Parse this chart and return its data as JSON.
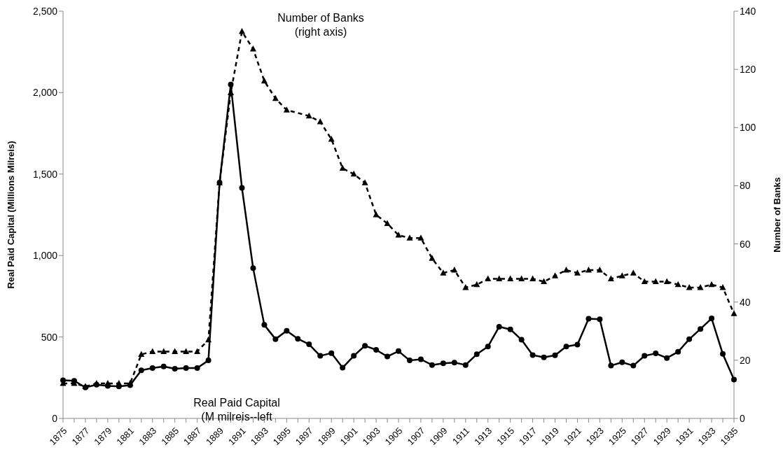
{
  "chart_data": {
    "type": "line",
    "categories": [
      "1875",
      null,
      "1877",
      null,
      "1879",
      null,
      "1881",
      null,
      "1883",
      null,
      "1885",
      null,
      "1887",
      null,
      "1889",
      null,
      "1891",
      null,
      "1893",
      null,
      "1895",
      null,
      "1897",
      null,
      "1899",
      null,
      "1901",
      null,
      "1903",
      null,
      "1905",
      null,
      "1907",
      null,
      "1909",
      null,
      "1911",
      null,
      "1913",
      null,
      "1915",
      null,
      "1917",
      null,
      "1919",
      null,
      "1921",
      null,
      "1923",
      null,
      "1925",
      null,
      "1927",
      null,
      "1929",
      null,
      "1931",
      null,
      "1933",
      null,
      "1935"
    ],
    "series": [
      {
        "color": "#000000",
        "marker": "circle",
        "line_style": "solid",
        "values": [
          234,
          231,
          190,
          207,
          200,
          197,
          204,
          295,
          309,
          319,
          305,
          309,
          309,
          356,
          1448,
          2050,
          1415,
          923,
          574,
          487,
          538,
          489,
          455,
          384,
          401,
          311,
          384,
          446,
          421,
          380,
          413,
          356,
          363,
          328,
          338,
          343,
          328,
          394,
          441,
          563,
          547,
          483,
          389,
          375,
          388,
          441,
          453,
          612,
          609,
          324,
          345,
          324,
          384,
          399,
          371,
          409,
          486,
          549,
          614,
          396,
          238
        ]
      },
      {
        "color": "#000000",
        "marker": "triangle",
        "line_style": "dashed",
        "axis": "y2",
        "values": [
          12,
          12,
          11,
          12,
          12,
          12,
          12,
          22,
          23,
          23,
          23,
          23,
          23,
          27,
          81,
          112,
          133,
          127,
          116,
          110,
          106,
          null,
          104,
          102,
          96,
          86,
          84,
          81,
          70,
          67,
          63,
          62,
          62,
          55,
          50,
          51,
          45,
          46,
          48,
          48,
          48,
          48,
          48,
          47,
          49,
          51,
          50,
          51,
          51,
          48,
          49,
          50,
          47,
          47,
          47,
          46,
          45,
          45,
          46,
          45,
          36
        ]
      }
    ],
    "ylabel": "Real Paid Capital (Millions Milreis)",
    "y2label": "Number of Banks",
    "ylim": [
      0,
      2500
    ],
    "yticks": [
      0,
      500,
      {
        "value": 1000,
        "label": "1,000"
      },
      {
        "value": 1500,
        "label": "1,500"
      },
      {
        "value": 2000,
        "label": "2,000"
      },
      {
        "value": 2500,
        "label": "2,500"
      }
    ],
    "y2lim": [
      0,
      140
    ],
    "y2ticks": [
      0,
      20,
      40,
      60,
      80,
      100,
      120,
      140
    ],
    "annotations": [
      "Number of Banks\n(right axis)",
      "Real Paid Capital\n(M milreis--left"
    ],
    "grid": false,
    "legend": false
  }
}
